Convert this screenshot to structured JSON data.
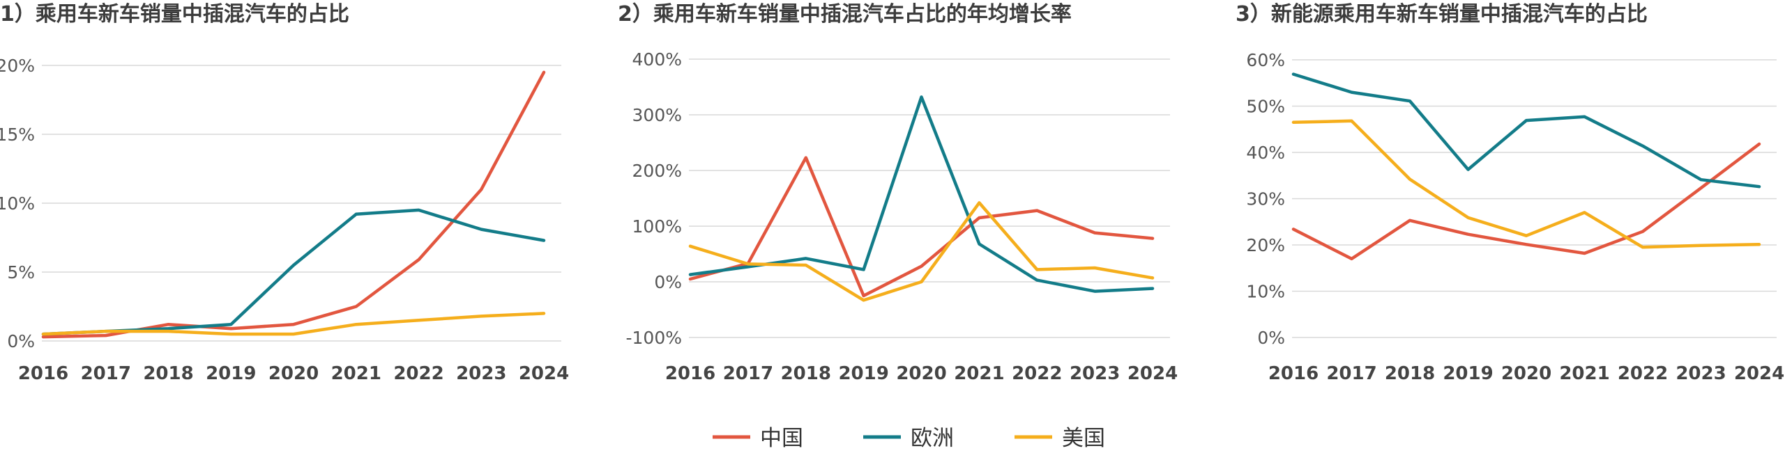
{
  "legend": [
    {
      "name": "中国",
      "color": "#E2563F"
    },
    {
      "name": "欧洲",
      "color": "#137C89"
    },
    {
      "name": "美国",
      "color": "#F5AE1C"
    }
  ],
  "chart_data": [
    {
      "type": "line",
      "title": "1）乘用车新车销量中插混汽车的占比",
      "categories": [
        "2016",
        "2017",
        "2018",
        "2019",
        "2020",
        "2021",
        "2022",
        "2023",
        "2024"
      ],
      "ylim": [
        0,
        20
      ],
      "yticks": [
        0,
        5,
        10,
        15,
        20
      ],
      "ytick_labels": [
        "0%",
        "5%",
        "10%",
        "15%",
        "20%"
      ],
      "series": [
        {
          "name": "中国",
          "values": [
            0.3,
            0.4,
            1.2,
            0.9,
            1.2,
            2.5,
            5.9,
            11.0,
            19.5
          ]
        },
        {
          "name": "欧洲",
          "values": [
            0.5,
            0.7,
            0.9,
            1.2,
            5.5,
            9.2,
            9.5,
            8.1,
            7.3
          ]
        },
        {
          "name": "美国",
          "values": [
            0.5,
            0.7,
            0.7,
            0.5,
            0.5,
            1.2,
            1.5,
            1.8,
            2.0
          ]
        }
      ]
    },
    {
      "type": "line",
      "title": "2）乘用车新车销量中插混汽车占比的年均增长率",
      "categories": [
        "2016",
        "2017",
        "2018",
        "2019",
        "2020",
        "2021",
        "2022",
        "2023",
        "2024"
      ],
      "ylim": [
        -100,
        400
      ],
      "yticks": [
        -100,
        0,
        100,
        200,
        300,
        400
      ],
      "ytick_labels": [
        "-100%",
        "0%",
        "100%",
        "200%",
        "300%",
        "400%"
      ],
      "series": [
        {
          "name": "中国",
          "values": [
            5,
            33,
            223,
            -25,
            28,
            115,
            128,
            88,
            78
          ]
        },
        {
          "name": "欧洲",
          "values": [
            13,
            27,
            42,
            22,
            332,
            68,
            3,
            -17,
            -12
          ]
        },
        {
          "name": "美国",
          "values": [
            64,
            32,
            30,
            -33,
            0,
            142,
            22,
            25,
            7
          ]
        }
      ]
    },
    {
      "type": "line",
      "title": "3）新能源乘用车新车销量中插混汽车的占比",
      "categories": [
        "2016",
        "2017",
        "2018",
        "2019",
        "2020",
        "2021",
        "2022",
        "2023",
        "2024"
      ],
      "ylim": [
        0,
        60
      ],
      "yticks": [
        0,
        10,
        20,
        30,
        40,
        50,
        60
      ],
      "ytick_labels": [
        "0%",
        "10%",
        "20%",
        "30%",
        "40%",
        "50%",
        "60%"
      ],
      "series": [
        {
          "name": "中国",
          "values": [
            23.4,
            17.0,
            25.3,
            22.3,
            20.1,
            18.2,
            22.9,
            32.3,
            41.8
          ]
        },
        {
          "name": "欧洲",
          "values": [
            56.9,
            53.0,
            51.1,
            36.3,
            46.9,
            47.7,
            41.4,
            34.1,
            32.6
          ]
        },
        {
          "name": "美国",
          "values": [
            46.5,
            46.8,
            34.2,
            25.9,
            22.0,
            27.0,
            19.5,
            19.9,
            20.1
          ]
        }
      ]
    }
  ]
}
